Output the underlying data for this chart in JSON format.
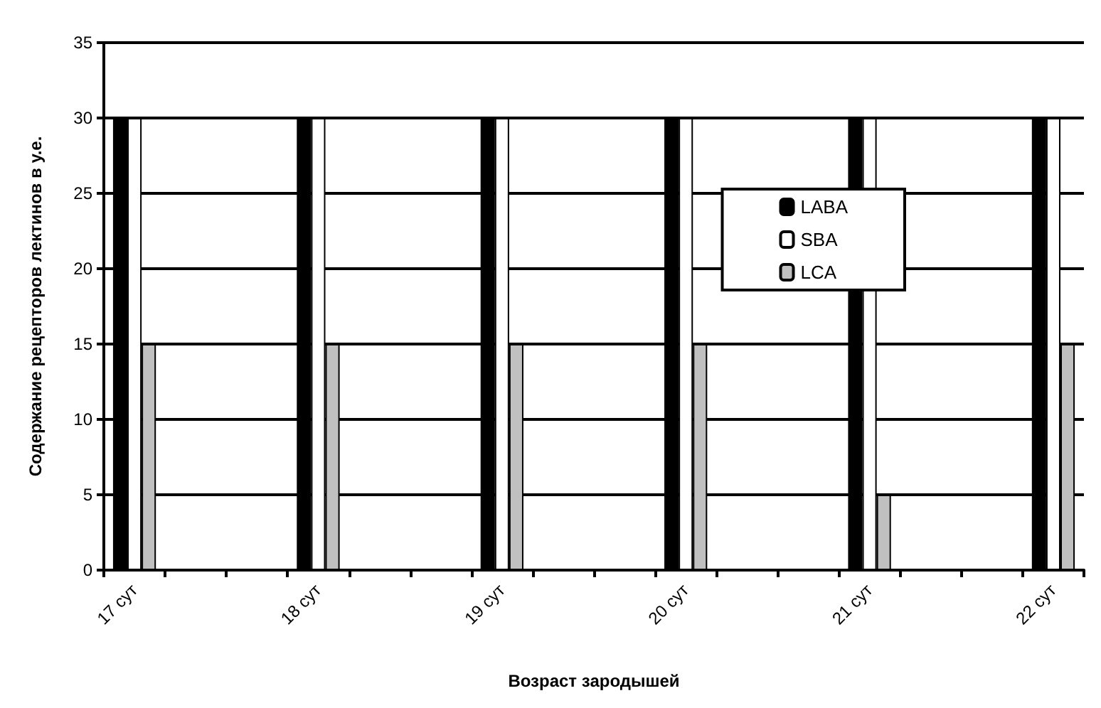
{
  "chart_data": {
    "type": "bar",
    "xlabel": "Возраст зародышей",
    "ylabel": "Содержание рецепторов лектинов в у.е.",
    "categories": [
      "17 сут",
      null,
      null,
      "18 сут",
      null,
      null,
      "19 сут",
      null,
      null,
      "20 сут",
      null,
      null,
      "21 сут",
      null,
      null,
      "22 сут"
    ],
    "series": [
      {
        "name": "LABA",
        "color": "#000000",
        "values": [
          30,
          null,
          null,
          30,
          null,
          null,
          30,
          null,
          null,
          30,
          null,
          null,
          30,
          null,
          null,
          30
        ]
      },
      {
        "name": "SBA",
        "color": "#ffffff",
        "values": [
          30,
          null,
          null,
          30,
          null,
          null,
          30,
          null,
          null,
          30,
          null,
          null,
          30,
          null,
          null,
          30
        ]
      },
      {
        "name": "LCA",
        "color": "#c0c0c0",
        "values": [
          15,
          null,
          null,
          15,
          null,
          null,
          15,
          null,
          null,
          15,
          null,
          null,
          5,
          null,
          null,
          15
        ]
      }
    ],
    "ylim": [
      0,
      35
    ],
    "yticks": [
      0,
      5,
      10,
      15,
      20,
      25,
      30,
      35
    ],
    "grid": "y",
    "legend": "right"
  }
}
